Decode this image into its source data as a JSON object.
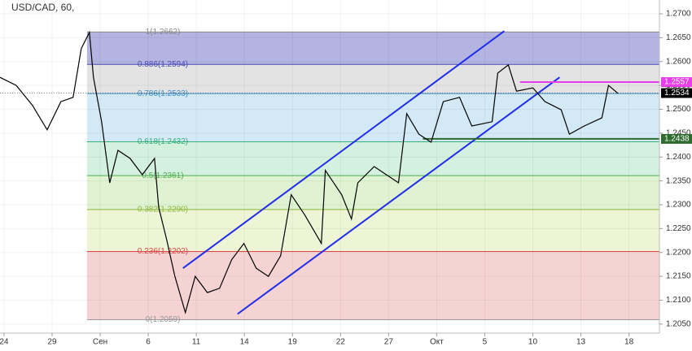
{
  "chart_data": {
    "type": "line",
    "title": "USD/CAD, 60,",
    "xlim": [
      -0.25,
      40.9
    ],
    "ylim": [
      1.2031,
      1.2729
    ],
    "xticks": [
      {
        "value": 0,
        "label": "24"
      },
      {
        "value": 3,
        "label": "29"
      },
      {
        "value": 6,
        "label": "Сен"
      },
      {
        "value": 9,
        "label": "6"
      },
      {
        "value": 12,
        "label": "11"
      },
      {
        "value": 15,
        "label": "14"
      },
      {
        "value": 18,
        "label": "19"
      },
      {
        "value": 21,
        "label": "22"
      },
      {
        "value": 24,
        "label": "27"
      },
      {
        "value": 27,
        "label": "Окт"
      },
      {
        "value": 30,
        "label": "5"
      },
      {
        "value": 33,
        "label": "10"
      },
      {
        "value": 36,
        "label": "13"
      },
      {
        "value": 39,
        "label": "18"
      }
    ],
    "yticks": [
      {
        "value": 1.205,
        "label": "1.2050"
      },
      {
        "value": 1.21,
        "label": "1.2100"
      },
      {
        "value": 1.215,
        "label": "1.2150"
      },
      {
        "value": 1.22,
        "label": "1.2200"
      },
      {
        "value": 1.225,
        "label": "1.2250"
      },
      {
        "value": 1.23,
        "label": "1.2300"
      },
      {
        "value": 1.235,
        "label": "1.2350"
      },
      {
        "value": 1.24,
        "label": "1.2400"
      },
      {
        "value": 1.245,
        "label": "1.2450"
      },
      {
        "value": 1.25,
        "label": "1.2500"
      },
      {
        "value": 1.255,
        "label": "1.2550"
      },
      {
        "value": 1.26,
        "label": "1.2600"
      },
      {
        "value": 1.265,
        "label": "1.2650"
      },
      {
        "value": 1.27,
        "label": "1.2700"
      }
    ],
    "series": [
      {
        "name": "USD/CAD",
        "color": "#000000",
        "x": [
          -0.25,
          0.76,
          1.78,
          2.69,
          3.55,
          4.31,
          4.82,
          5.33,
          5.58,
          6.09,
          6.6,
          7.11,
          7.87,
          8.63,
          9.39,
          9.65,
          10.15,
          10.66,
          11.32,
          11.93,
          12.69,
          13.45,
          14.21,
          14.97,
          15.74,
          16.5,
          17.26,
          17.92,
          18.78,
          19.8,
          20.05,
          21.07,
          21.68,
          22.08,
          23.1,
          24.62,
          25.13,
          25.89,
          26.65,
          27.41,
          28.43,
          29.19,
          30.46,
          30.81,
          31.47,
          31.98,
          33,
          33.76,
          34.77,
          35.28,
          36.2,
          37.31,
          37.72,
          38.32
        ],
        "values": [
          1.2567,
          1.255,
          1.2508,
          1.2457,
          1.2516,
          1.2525,
          1.2627,
          1.2661,
          1.2567,
          1.2474,
          1.2346,
          1.2414,
          1.2397,
          1.2363,
          1.2397,
          1.2295,
          1.2227,
          1.215,
          1.2074,
          1.215,
          1.2116,
          1.2125,
          1.2185,
          1.2219,
          1.2167,
          1.215,
          1.2193,
          1.2321,
          1.2278,
          1.2219,
          1.2372,
          1.2321,
          1.227,
          1.2346,
          1.238,
          1.2346,
          1.2491,
          1.2448,
          1.2431,
          1.2516,
          1.2525,
          1.2465,
          1.2474,
          1.2576,
          1.2593,
          1.2538,
          1.2545,
          1.2516,
          1.2499,
          1.2448,
          1.2465,
          1.2482,
          1.255,
          1.2533
        ]
      }
    ],
    "fib_start": 5.18,
    "fib_levels": [
      {
        "value": 1.2662,
        "label": "1(1.2662)",
        "color": "#888888",
        "band_color": "#b4b4e2"
      },
      {
        "value": 1.2594,
        "label": "0.886(1.2594)",
        "color": "#4b4bb5",
        "band_color": "#e3e3e3"
      },
      {
        "value": 1.2533,
        "label": "0.786(1.2533)",
        "color": "#3f8fc4",
        "band_color": "#d3e9f6"
      },
      {
        "value": 1.2432,
        "label": "0.618(1.2432)",
        "color": "#35b07a",
        "band_color": "#d4f0df"
      },
      {
        "value": 1.2361,
        "label": "0.5(1.2361)",
        "color": "#4caf50",
        "band_color": "#dff2d2"
      },
      {
        "value": 1.229,
        "label": "0.382(1.2290)",
        "color": "#8bb83a",
        "band_color": "#eef5d6"
      },
      {
        "value": 1.2202,
        "label": "0.236(1.2202)",
        "color": "#e04848",
        "band_color": "#f6d3d3"
      },
      {
        "value": 1.2059,
        "label": "0(1.2059)",
        "color": "#999999"
      }
    ],
    "drawings": [
      {
        "x": [
          11.17,
          31.22
        ],
        "y": [
          1.2167,
          1.2664
        ],
        "color": "#1f2ee8"
      },
      {
        "x": [
          14.57,
          34.67
        ],
        "y": [
          1.2071,
          1.2567
        ],
        "color": "#1f2ee8"
      }
    ],
    "price_lines": [
      {
        "value": 1.2557,
        "x_start": 32.2,
        "color": "#e83de8"
      },
      {
        "value": 1.2438,
        "x_start": 26.14,
        "color": "#2e6b2e"
      }
    ],
    "last_price": 1.2534
  }
}
